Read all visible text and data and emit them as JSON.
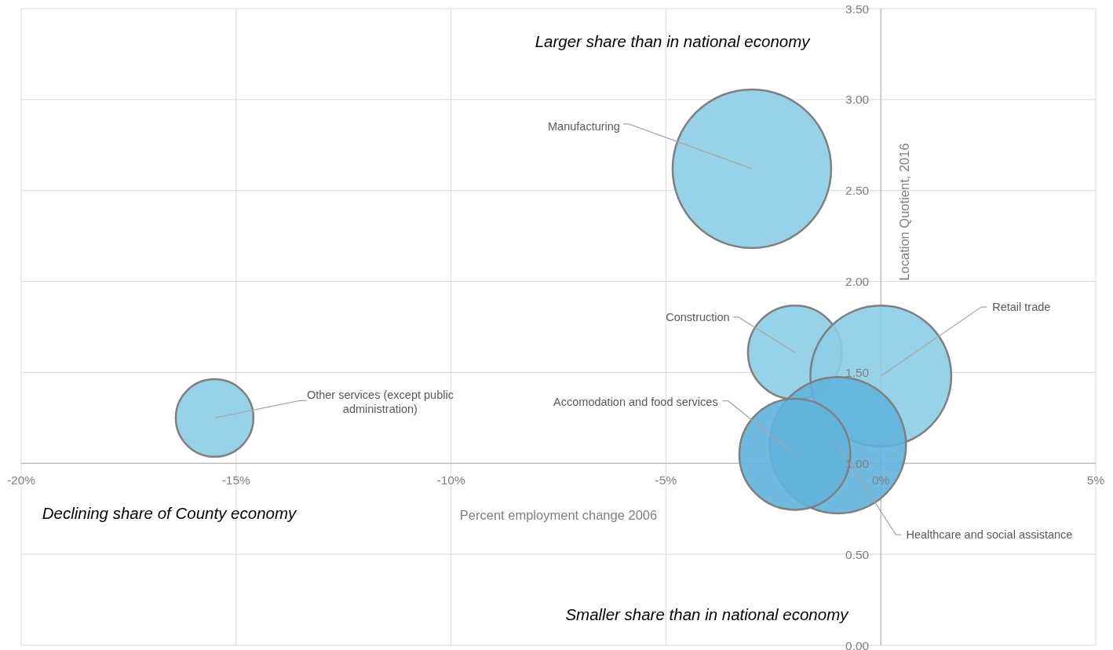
{
  "chart_data": {
    "type": "bubble",
    "xlabel": "Percent employment change 2006",
    "ylabel": "Location Quotient, 2016",
    "xlim": [
      -20,
      5
    ],
    "xticks": [
      {
        "value": -20,
        "label": "-20%"
      },
      {
        "value": -15,
        "label": "-15%"
      },
      {
        "value": -10,
        "label": "-10%"
      },
      {
        "value": -5,
        "label": "-5%"
      },
      {
        "value": 0,
        "label": "0%"
      },
      {
        "value": 5,
        "label": "5%"
      }
    ],
    "ylim": [
      0,
      3.5
    ],
    "yticks": [
      {
        "value": 0,
        "label": "0.00"
      },
      {
        "value": 0.5,
        "label": "0.50"
      },
      {
        "value": 1,
        "label": "1.00"
      },
      {
        "value": 1.5,
        "label": "1.50"
      },
      {
        "value": 2,
        "label": "2.00"
      },
      {
        "value": 2.5,
        "label": "2.50"
      },
      {
        "value": 3,
        "label": "3.00"
      },
      {
        "value": 3.5,
        "label": "3.50"
      }
    ],
    "grid": true,
    "annotations": [
      "Larger share than in national economy",
      "Declining share of County economy",
      "Smaller share than in national economy"
    ],
    "series": [
      {
        "name": "Manufacturing",
        "color": "#8dcde6",
        "x": [
          -3.0
        ],
        "values": [
          2.62
        ],
        "sizes": [
          1
        ]
      },
      {
        "name": "Other services (except public administration)",
        "color": "#8dcde6",
        "x": [
          -15.5
        ],
        "values": [
          1.25
        ],
        "sizes": [
          0.24
        ]
      },
      {
        "name": "Construction",
        "color": "#8dcde6",
        "x": [
          -2.0
        ],
        "values": [
          1.61
        ],
        "sizes": [
          0.35
        ]
      },
      {
        "name": "Retail trade",
        "color": "#8dcde6",
        "x": [
          0.0
        ],
        "values": [
          1.48
        ],
        "sizes": [
          0.79
        ]
      },
      {
        "name": "Healthcare and social assistance",
        "color": "#62b3dc",
        "x": [
          -1.0
        ],
        "values": [
          1.1
        ],
        "sizes": [
          0.74
        ]
      },
      {
        "name": "Accomodation and food services",
        "color": "#62b3dc",
        "x": [
          -2.0
        ],
        "values": [
          1.05
        ],
        "sizes": [
          0.49
        ]
      }
    ]
  }
}
